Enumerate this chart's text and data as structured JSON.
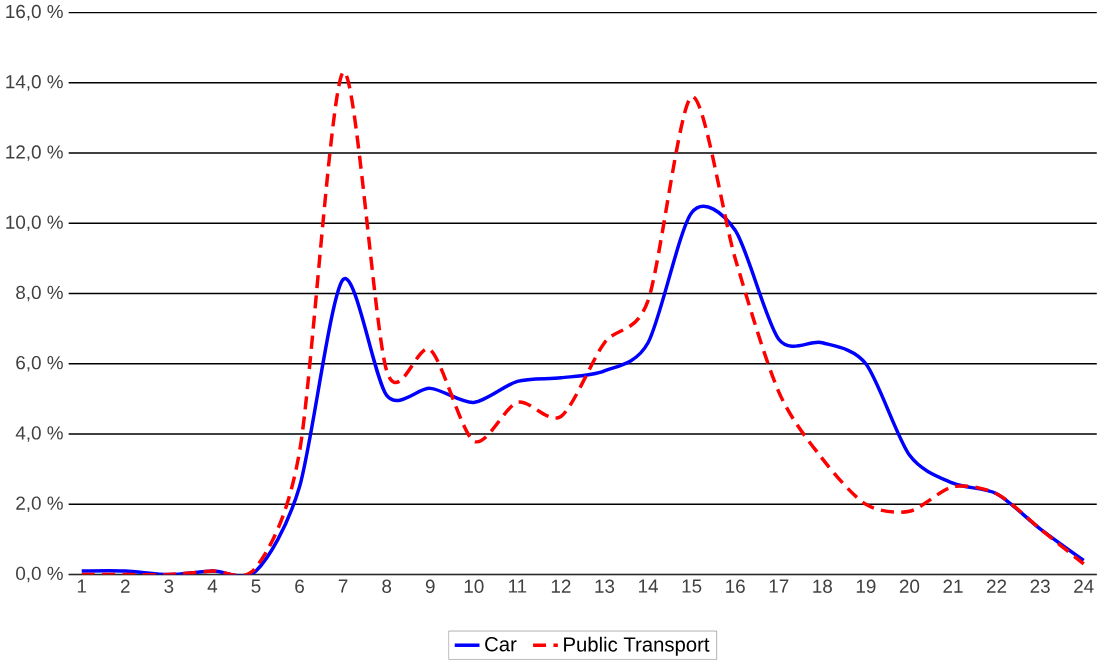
{
  "chart_data": {
    "type": "line",
    "categories": [
      "1",
      "2",
      "3",
      "4",
      "5",
      "6",
      "7",
      "8",
      "9",
      "10",
      "11",
      "12",
      "13",
      "14",
      "15",
      "16",
      "17",
      "18",
      "19",
      "20",
      "21",
      "22",
      "23",
      "24"
    ],
    "series": [
      {
        "name": "Car",
        "color": "#0000ff",
        "line_style": "solid",
        "values": [
          0.1,
          0.1,
          0.0,
          0.1,
          0.1,
          2.5,
          8.4,
          5.1,
          5.3,
          4.9,
          5.5,
          5.6,
          5.8,
          6.6,
          10.3,
          9.8,
          6.7,
          6.6,
          6.0,
          3.4,
          2.6,
          2.3,
          1.3,
          0.4
        ]
      },
      {
        "name": "Public Transport",
        "color": "#ff0000",
        "line_style": "dashed",
        "values": [
          0.0,
          0.0,
          0.0,
          0.1,
          0.2,
          3.5,
          14.3,
          5.8,
          6.4,
          3.8,
          4.9,
          4.5,
          6.6,
          7.8,
          13.6,
          9.0,
          5.2,
          3.3,
          2.0,
          1.8,
          2.5,
          2.3,
          1.3,
          0.3
        ]
      }
    ],
    "ylim": [
      0,
      16
    ],
    "yticks": [
      {
        "value": 0,
        "label": "0,0 %"
      },
      {
        "value": 2,
        "label": "2,0 %"
      },
      {
        "value": 4,
        "label": "4,0 %"
      },
      {
        "value": 6,
        "label": "6,0 %"
      },
      {
        "value": 8,
        "label": "8,0 %"
      },
      {
        "value": 10,
        "label": "10,0 %"
      },
      {
        "value": 12,
        "label": "12,0 %"
      },
      {
        "value": 14,
        "label": "14,0 %"
      },
      {
        "value": 16,
        "label": "16,0 %"
      }
    ],
    "grid": "y",
    "legend": "bottom",
    "marker": "none"
  }
}
